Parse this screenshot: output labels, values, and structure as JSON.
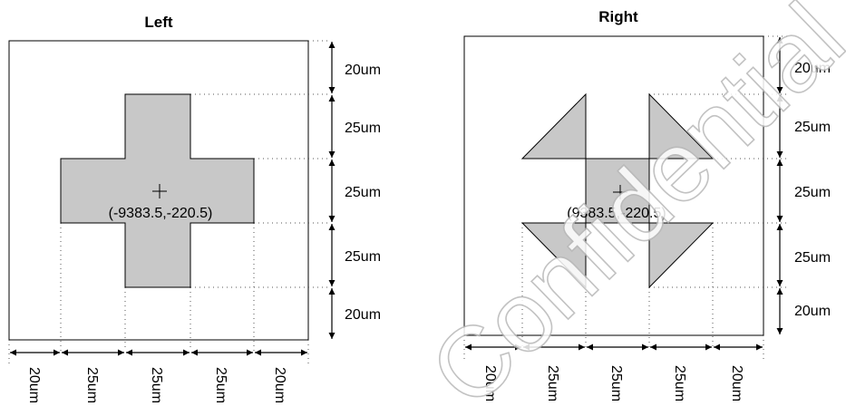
{
  "left_panel": {
    "title": "Left",
    "center_label": "(-9383.5,-220.5)",
    "vertical_dims": [
      "20um",
      "25um",
      "25um",
      "25um",
      "20um"
    ],
    "horizontal_dims": [
      "20um",
      "25um",
      "25um",
      "25um",
      "20um"
    ]
  },
  "right_panel": {
    "title": "Right",
    "center_label": "(9383.5,-220.5)",
    "vertical_dims": [
      "20um",
      "25um",
      "25um",
      "25um",
      "20um"
    ],
    "horizontal_dims": [
      "20um",
      "25um",
      "25um",
      "25um",
      "20um"
    ]
  },
  "watermark": "Confidential Only",
  "colors": {
    "shape_fill": "#c8c8c8",
    "outline": "#000000"
  }
}
